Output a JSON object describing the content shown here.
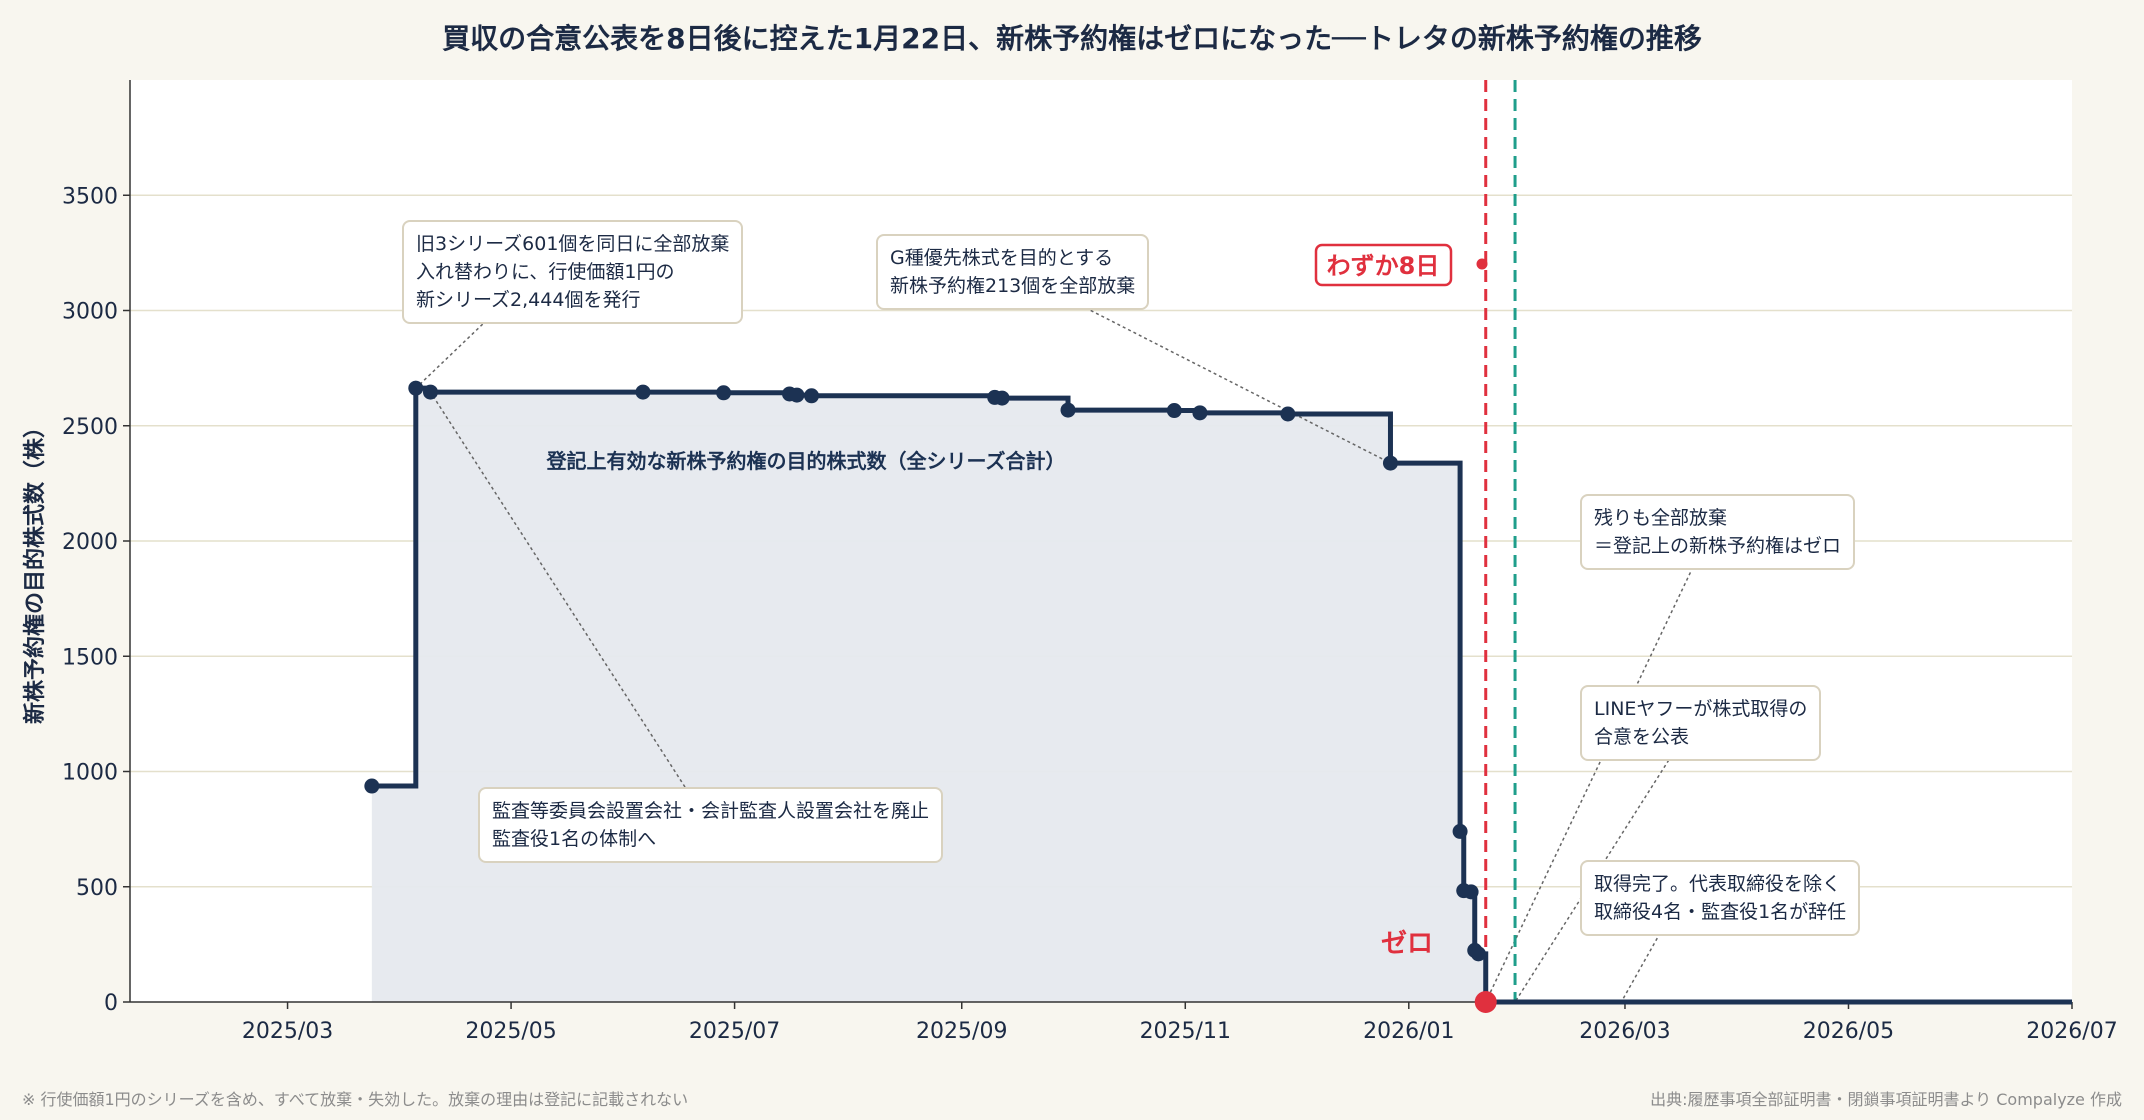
{
  "title": "買収の合意公表を8日後に控えた1月22日、新株予約権はゼロになった──トレタの新株予約権の推移",
  "colors": {
    "background": "#f8f6ef",
    "line": "#1c3253",
    "fill": "#e6e9ee",
    "red": "#e0303e",
    "teal": "#1f9e8b",
    "grid": "#e4e0cc"
  },
  "chart_data": {
    "type": "line",
    "step": "post",
    "ylabel": "新株予約権の目的株式数（株）",
    "ylim": [
      0,
      4000
    ],
    "yticks": [
      0,
      500,
      1000,
      1500,
      2000,
      2500,
      3000,
      3500
    ],
    "xlim": [
      "2025-01-17",
      "2026-07-01"
    ],
    "xticks": [
      "2025/03",
      "2025/05",
      "2025/07",
      "2025/09",
      "2025/11",
      "2026/01",
      "2026/03",
      "2026/05",
      "2026/07"
    ],
    "grid": "horizontal",
    "series": [
      {
        "name": "登記上有効な新株予約権の目的株式数（全シリーズ合計）",
        "points": [
          {
            "x": "2025-03-24",
            "y": 937
          },
          {
            "x": "2025-04-05",
            "y": 2663
          },
          {
            "x": "2025-04-09",
            "y": 2646
          },
          {
            "x": "2025-06-06",
            "y": 2646
          },
          {
            "x": "2025-06-28",
            "y": 2643
          },
          {
            "x": "2025-07-16",
            "y": 2638
          },
          {
            "x": "2025-07-18",
            "y": 2633
          },
          {
            "x": "2025-07-22",
            "y": 2630
          },
          {
            "x": "2025-09-10",
            "y": 2623
          },
          {
            "x": "2025-09-12",
            "y": 2620
          },
          {
            "x": "2025-09-30",
            "y": 2568
          },
          {
            "x": "2025-10-29",
            "y": 2566
          },
          {
            "x": "2025-11-05",
            "y": 2556
          },
          {
            "x": "2025-11-29",
            "y": 2551
          },
          {
            "x": "2025-12-27",
            "y": 2338
          },
          {
            "x": "2026-01-15",
            "y": 740
          },
          {
            "x": "2026-01-16",
            "y": 483
          },
          {
            "x": "2026-01-18",
            "y": 478
          },
          {
            "x": "2026-01-19",
            "y": 224
          },
          {
            "x": "2026-01-20",
            "y": 209
          },
          {
            "x": "2026-01-22",
            "y": 0
          }
        ],
        "extend_to": "2026-07-01"
      }
    ],
    "series_label": "登記上有効な新株予約権の目的株式数（全シリーズ合計）",
    "vlines": [
      {
        "date": "2026-01-22",
        "color": "#e0303e"
      },
      {
        "date": "2026-01-30",
        "color": "#1f9e8b"
      }
    ],
    "annotations": [
      {
        "lines": [
          "旧3シリーズ601個を同日に全部放棄",
          "入れ替わりに、行使価額1円の",
          "新シリーズ2,444個を発行"
        ],
        "x": "2025-04-05",
        "y": 2663
      },
      {
        "lines": [
          "G種優先株式を目的とする",
          "新株予約権213個を全部放棄"
        ],
        "x": "2025-12-27",
        "y": 2338
      },
      {
        "lines": [
          "監査等委員会設置会社・会計監査人設置会社を廃止",
          "監査役1名の体制へ"
        ],
        "x": "2025-04-09",
        "y": 2646
      },
      {
        "lines": [
          "残りも全部放棄",
          "＝登記上の新株予約権はゼロ"
        ],
        "x": "2026-01-22",
        "y": 0
      },
      {
        "lines": [
          "LINEヤフーが株式取得の",
          "合意を公表"
        ],
        "x": "2026-01-30",
        "y": 0
      },
      {
        "lines": [
          "取得完了。代表取締役を除く",
          "取締役4名・監査役1名が辞任"
        ],
        "x": "2026-02-28",
        "y": 0
      }
    ],
    "callouts": {
      "gap_label": "わずか8日",
      "zero_label": "ゼロ"
    }
  },
  "footer": {
    "note": "※ 行使価額1円のシリーズを含め、すべて放棄・失効した。放棄の理由は登記に記載されない",
    "source": "出典:履歴事項全部証明書・閉鎖事項証明書より Compalyze 作成"
  }
}
